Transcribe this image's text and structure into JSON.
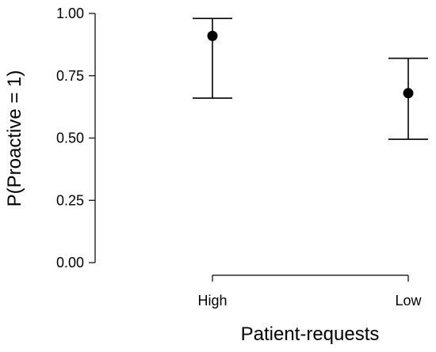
{
  "chart_data": {
    "type": "scatter",
    "title": "",
    "xlabel": "Patient-requests",
    "ylabel": "P(Proactive = 1)",
    "categories": [
      "High",
      "Low"
    ],
    "values": [
      0.91,
      0.68
    ],
    "ci_lower": [
      0.66,
      0.495
    ],
    "ci_upper": [
      0.98,
      0.82
    ],
    "ylim": [
      0,
      1
    ],
    "yticks": [
      "0.00",
      "0.25",
      "0.50",
      "0.75",
      "1.00"
    ],
    "grid": false,
    "legend": "none",
    "colors": {
      "marks": "#000000"
    }
  }
}
